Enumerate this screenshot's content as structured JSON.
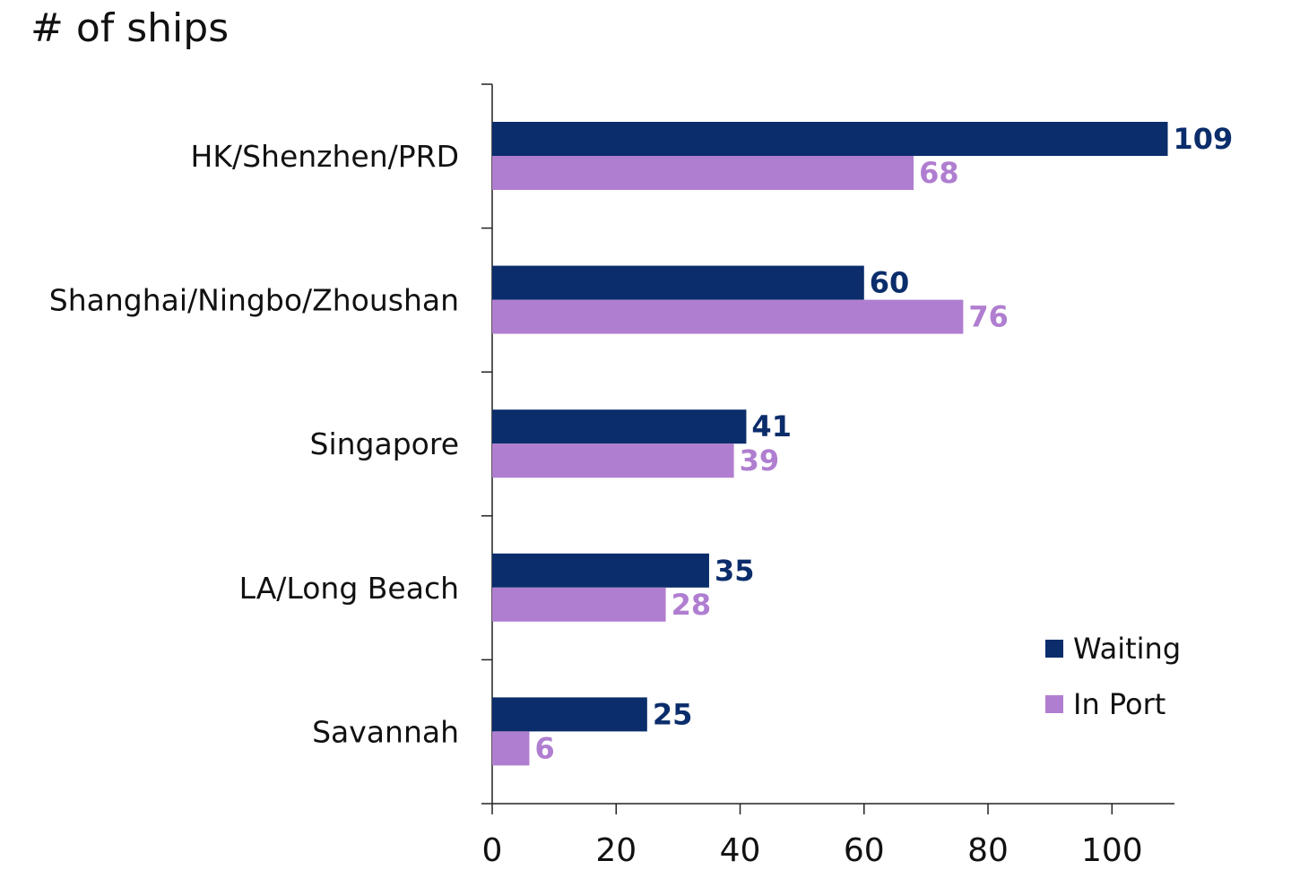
{
  "chart_data": {
    "type": "bar",
    "orientation": "horizontal",
    "title": "# of ships",
    "categories": [
      "HK/Shenzhen/PRD",
      "Shanghai/Ningbo/Zhoushan",
      "Singapore",
      "LA/Long Beach",
      "Savannah"
    ],
    "series": [
      {
        "name": "Waiting",
        "values": [
          109,
          60,
          41,
          35,
          25
        ],
        "color": "#0b2d6b"
      },
      {
        "name": "In Port",
        "values": [
          68,
          76,
          39,
          28,
          6
        ],
        "color": "#b07ed0"
      }
    ],
    "xlim": [
      0,
      110
    ],
    "xticks": [
      0,
      20,
      40,
      60,
      80,
      100
    ],
    "xlabel": "",
    "ylabel": "",
    "legend_position": "bottom-right",
    "data_labels": true,
    "grid": false
  }
}
